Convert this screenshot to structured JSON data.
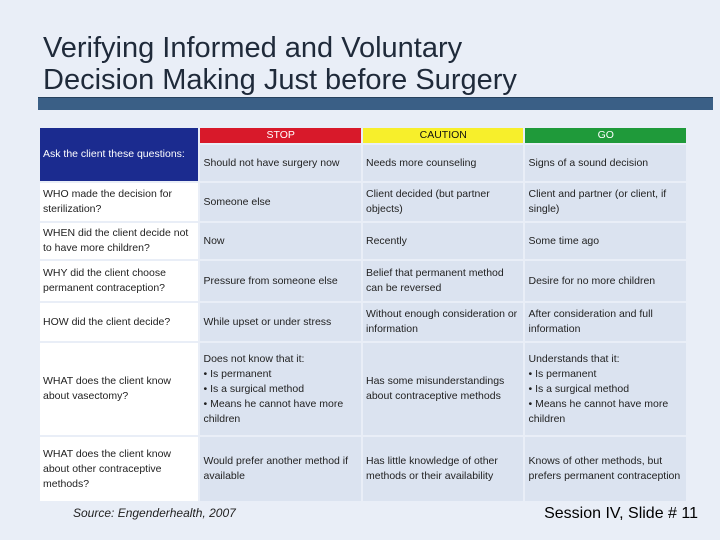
{
  "title": {
    "line1": "Verifying Informed and Voluntary",
    "line2": "Decision Making Just before Surgery"
  },
  "table": {
    "ask_label": "Ask the client these questions:",
    "headers": {
      "stop": "STOP",
      "caution": "CAUTION",
      "go": "GO"
    },
    "subheaders": {
      "stop": "Should not have surgery now",
      "caution": "Needs more counseling",
      "go": "Signs of a sound decision"
    },
    "rows": [
      {
        "question": "WHO made the decision for sterilization?",
        "stop": "Someone else",
        "caution": "Client decided (but partner objects)",
        "go": "Client and partner (or client, if single)"
      },
      {
        "question": "WHEN did the client decide not to have more children?",
        "stop": "Now",
        "caution": "Recently",
        "go": "Some time ago"
      },
      {
        "question": "WHY did the client choose permanent contraception?",
        "stop": "Pressure from someone else",
        "caution": "Belief that permanent method can be reversed",
        "go": "Desire for no more children"
      },
      {
        "question": "HOW did the client decide?",
        "stop": "While upset or under stress",
        "caution": "Without enough consideration or information",
        "go": "After consideration and full information"
      },
      {
        "question": "WHAT does the client know about vasectomy?",
        "stop": "Does not know that it:\n• Is permanent\n• Is a surgical method\n• Means he cannot have more children",
        "caution": "Has some misunderstandings about contraceptive methods",
        "go": "Understands that it:\n• Is permanent\n• Is a surgical method\n• Means he cannot have more children"
      },
      {
        "question": "WHAT does the client know about other contraceptive methods?",
        "stop": "Would prefer another method if available",
        "caution": "Has little knowledge of other methods or their availability",
        "go": "Knows of other methods, but prefers permanent contraception"
      }
    ]
  },
  "footer": {
    "source": "Source: Engenderhealth, 2007",
    "slide": "Session IV, Slide # 11"
  },
  "colors": {
    "ask_header": "#1b2b8f",
    "stop": "#d8192a",
    "caution": "#f7ef2b",
    "go": "#1f9a3a",
    "rule": "#3a5f86",
    "cell": "#dbe3f0"
  }
}
